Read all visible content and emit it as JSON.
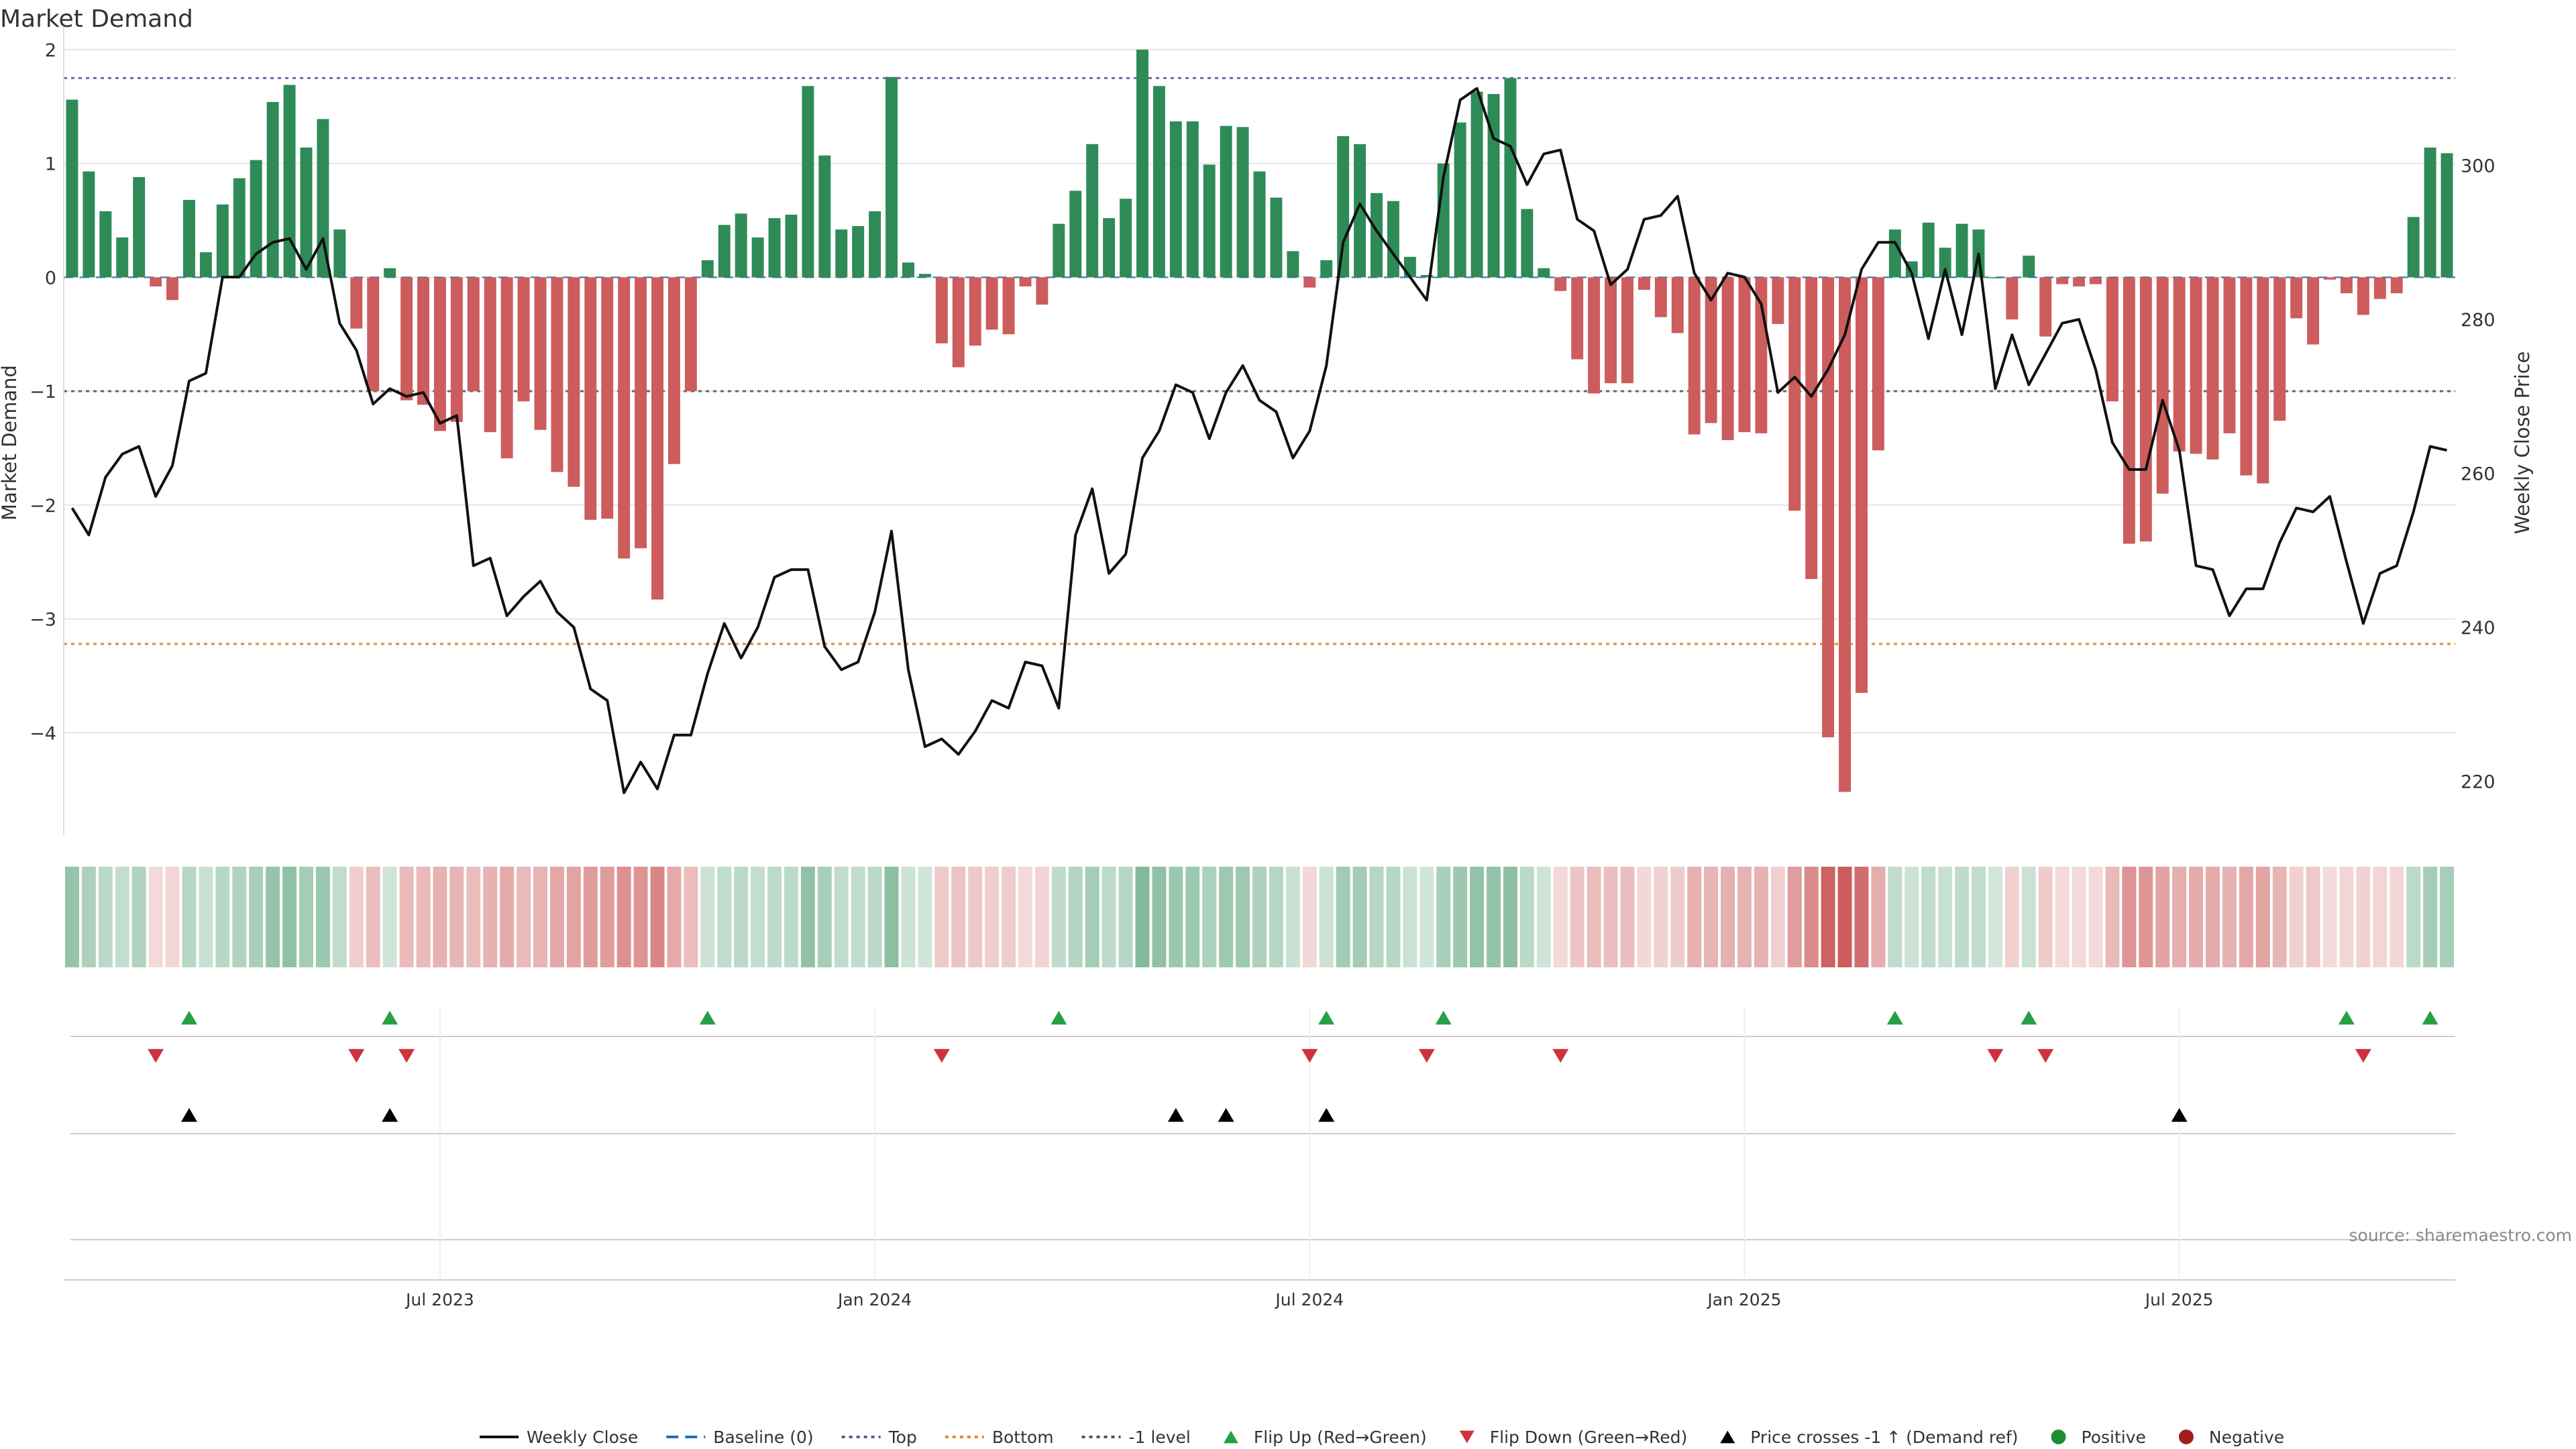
{
  "chart_data": {
    "type": "bar",
    "title": "Market Demand",
    "ylabel": "Market Demand",
    "y2label": "Weekly Close Price",
    "source": "source: sharemaestro.com",
    "ylim": [
      -4.9,
      2.2
    ],
    "y2lim": [
      213,
      318
    ],
    "yticks": [
      2,
      1,
      0,
      -1,
      -2,
      -3,
      -4
    ],
    "ytick_labels": [
      "2",
      "1",
      "0",
      "−1",
      "−2",
      "−3",
      "−4"
    ],
    "y2ticks": [
      300,
      280,
      260,
      240,
      220
    ],
    "ytop": 1.75,
    "ybottom": -3.22,
    "yminus1": -1,
    "xticks": [
      {
        "week": 22,
        "label": "Jul 2023"
      },
      {
        "week": 48,
        "label": "Jan 2024"
      },
      {
        "week": 74,
        "label": "Jul 2024"
      },
      {
        "week": 100,
        "label": "Jan 2025"
      },
      {
        "week": 126,
        "label": "Jul 2025"
      }
    ],
    "series": [
      {
        "name": "Market Demand",
        "values": [
          1.56,
          0.93,
          0.58,
          0.35,
          0.88,
          -0.08,
          -0.2,
          0.68,
          0.22,
          0.64,
          0.87,
          1.03,
          1.54,
          1.69,
          1.14,
          1.39,
          0.42,
          -0.45,
          -1.0,
          0.08,
          -1.08,
          -1.12,
          -1.35,
          -1.27,
          -1.0,
          -1.36,
          -1.59,
          -1.09,
          -1.34,
          -1.71,
          -1.84,
          -2.13,
          -2.12,
          -2.47,
          -2.38,
          -2.83,
          -1.64,
          -1.0,
          0.15,
          0.46,
          0.56,
          0.35,
          0.52,
          0.55,
          1.68,
          1.07,
          0.42,
          0.45,
          0.58,
          1.76,
          0.13,
          0.03,
          -0.58,
          -0.79,
          -0.6,
          -0.46,
          -0.5,
          -0.08,
          -0.24,
          0.47,
          0.76,
          1.17,
          0.52,
          0.69,
          2.0,
          1.68,
          1.37,
          1.37,
          0.99,
          1.33,
          1.32,
          0.93,
          0.7,
          0.23,
          -0.09,
          0.15,
          1.24,
          1.17,
          0.74,
          0.67,
          0.18,
          0.02,
          1.0,
          1.36,
          1.63,
          1.61,
          1.75,
          0.6,
          0.08,
          -0.12,
          -0.72,
          -1.02,
          -0.93,
          -0.93,
          -0.11,
          -0.35,
          -0.49,
          -1.38,
          -1.28,
          -1.43,
          -1.36,
          -1.37,
          -0.41,
          -2.05,
          -2.65,
          -4.04,
          -4.52,
          -3.65,
          -1.52,
          0.42,
          0.14,
          0.48,
          0.26,
          0.47,
          0.42,
          0.0,
          -0.37,
          0.19,
          -0.52,
          -0.06,
          -0.08,
          -0.06,
          -1.09,
          -2.34,
          -2.32,
          -1.9,
          -1.53,
          -1.55,
          -1.6,
          -1.37,
          -1.74,
          -1.81,
          -1.26,
          -0.36,
          -0.59,
          -0.02,
          -0.14,
          -0.33,
          -0.19,
          -0.14,
          0.53,
          1.14,
          1.09
        ]
      },
      {
        "name": "Weekly Close",
        "values": [
          255.5,
          252,
          259.5,
          262.5,
          263.5,
          257,
          261,
          272,
          273,
          285.5,
          285.5,
          288.5,
          290,
          290.5,
          286.5,
          290.5,
          279.5,
          276,
          269,
          271,
          270,
          270.5,
          266.5,
          267.5,
          248,
          249,
          241.5,
          244,
          246,
          242,
          240,
          232,
          230.5,
          218.5,
          222.5,
          219,
          226,
          226,
          234,
          240.5,
          236,
          240,
          246.5,
          247.5,
          247.5,
          237.5,
          234.5,
          235.5,
          242,
          252.5,
          234.5,
          224.5,
          225.5,
          223.5,
          226.5,
          230.5,
          229.5,
          235.5,
          235,
          229.5,
          252,
          258,
          247,
          249.5,
          262,
          265.5,
          271.5,
          270.5,
          264.5,
          270.5,
          274,
          269.5,
          268,
          262,
          265.5,
          274,
          290,
          295,
          291.5,
          288.5,
          285.5,
          282.5,
          298.5,
          308.5,
          310,
          303.5,
          302.5,
          297.5,
          301.5,
          302,
          293,
          291.5,
          284.5,
          286.5,
          293,
          293.5,
          296,
          286,
          282.5,
          286,
          285.5,
          282,
          270.5,
          272.5,
          270,
          273.5,
          278,
          286.5,
          290,
          290,
          286,
          277.5,
          286.5,
          278,
          288.5,
          271,
          278,
          271.5,
          275.5,
          279.5,
          280,
          273.5,
          264,
          260.5,
          260.5,
          269.5,
          263,
          248,
          247.5,
          241.5,
          245,
          245,
          251,
          255.5,
          255,
          257,
          248.5,
          240.5,
          247,
          248,
          255,
          263.5,
          263
        ]
      }
    ],
    "flip_up_weeks": [
      7,
      19,
      38,
      59,
      75,
      82,
      109,
      117,
      136,
      141
    ],
    "flip_down_weeks": [
      5,
      17,
      20,
      52,
      74,
      81,
      89,
      115,
      118,
      137
    ],
    "price_cross_weeks": [
      7,
      19,
      66,
      69,
      75,
      126
    ],
    "legend": [
      {
        "label": "Weekly Close",
        "kind": "solid-line",
        "color": "#111111"
      },
      {
        "label": "Baseline (0)",
        "kind": "dashed-line",
        "color": "#2a6fb0"
      },
      {
        "label": "Top",
        "kind": "dotted-line",
        "color": "#5a5a9a"
      },
      {
        "label": "Bottom",
        "kind": "dotted-line",
        "color": "#e08a2c"
      },
      {
        "label": "-1 level",
        "kind": "dotted-line",
        "color": "#555555"
      },
      {
        "label": "Flip Up (Red→Green)",
        "kind": "up-triangle",
        "color": "#27a045"
      },
      {
        "label": "Flip Down (Green→Red)",
        "kind": "down-triangle",
        "color": "#d0323c"
      },
      {
        "label": "Price crosses -1 ↑ (Demand ref)",
        "kind": "up-triangle",
        "color": "#000000"
      },
      {
        "label": "Positive",
        "kind": "circle",
        "color": "#1e8c33"
      },
      {
        "label": "Negative",
        "kind": "circle",
        "color": "#a11e20"
      }
    ],
    "colors": {
      "positive_bar": "#2e8b57",
      "negative_bar": "#cd5c5c",
      "price_line": "#111111",
      "top_line": "#6a6aa8",
      "bottom_line": "#e08a2c",
      "minus1_line": "#666666",
      "flip_up": "#27a045",
      "flip_down": "#d0323c",
      "price_cross": "#000000"
    }
  }
}
